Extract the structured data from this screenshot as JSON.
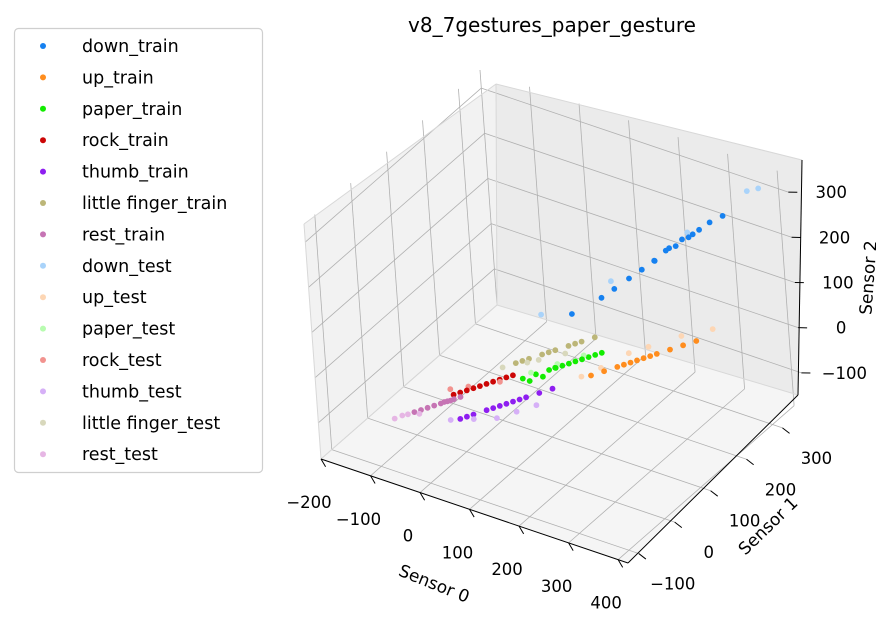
{
  "chart_data": {
    "type": "scatter",
    "projection": "3d",
    "title": "v8_7gestures_paper_gesture",
    "xlabel": "Sensor 0",
    "ylabel": "Sensor 1",
    "zlabel": "Sensor 2",
    "xlim": [
      -200,
      420
    ],
    "ylim": [
      -130,
      360
    ],
    "zlim": [
      -180,
      340
    ],
    "xticks": [
      "−200",
      "−100",
      "0",
      "100",
      "200",
      "300",
      "400"
    ],
    "yticks": [
      "−100",
      "0",
      "100",
      "200",
      "300"
    ],
    "zticks": [
      "−100",
      "0",
      "100",
      "200",
      "300"
    ],
    "grid": true,
    "legend_position": "outside-left",
    "series": [
      {
        "name": "down_train",
        "color": "#1681f0",
        "points": [
          [
            100,
            175,
            40
          ],
          [
            140,
            205,
            70
          ],
          [
            160,
            215,
            90
          ],
          [
            180,
            230,
            110
          ],
          [
            200,
            240,
            130
          ],
          [
            220,
            250,
            150
          ],
          [
            235,
            262,
            170
          ],
          [
            250,
            270,
            180
          ],
          [
            270,
            280,
            200
          ],
          [
            285,
            290,
            215
          ],
          [
            300,
            300,
            230
          ],
          [
            320,
            310,
            245
          ],
          [
            260,
            275,
            195
          ],
          [
            275,
            285,
            205
          ],
          [
            240,
            265,
            175
          ],
          [
            215,
            255,
            145
          ]
        ]
      },
      {
        "name": "up_train",
        "color": "#ff8d1e",
        "points": [
          [
            150,
            150,
            -60
          ],
          [
            170,
            160,
            -50
          ],
          [
            190,
            170,
            -40
          ],
          [
            210,
            180,
            -30
          ],
          [
            230,
            190,
            -20
          ],
          [
            250,
            200,
            -10
          ],
          [
            270,
            210,
            0
          ],
          [
            290,
            220,
            10
          ],
          [
            310,
            230,
            20
          ],
          [
            200,
            175,
            -35
          ],
          [
            220,
            185,
            -25
          ],
          [
            240,
            195,
            -15
          ]
        ]
      },
      {
        "name": "paper_train",
        "color": "#12ec00",
        "points": [
          [
            40,
            110,
            -80
          ],
          [
            60,
            120,
            -70
          ],
          [
            80,
            130,
            -60
          ],
          [
            100,
            140,
            -50
          ],
          [
            120,
            150,
            -40
          ],
          [
            140,
            160,
            -30
          ],
          [
            160,
            170,
            -20
          ],
          [
            70,
            125,
            -75
          ],
          [
            90,
            135,
            -55
          ],
          [
            110,
            145,
            -45
          ],
          [
            130,
            155,
            -35
          ],
          [
            150,
            165,
            -25
          ],
          [
            50,
            115,
            -85
          ],
          [
            85,
            140,
            -60
          ]
        ]
      },
      {
        "name": "rock_train",
        "color": "#cc0606",
        "points": [
          [
            -60,
            70,
            -120
          ],
          [
            -40,
            80,
            -110
          ],
          [
            -20,
            90,
            -100
          ],
          [
            0,
            100,
            -90
          ],
          [
            20,
            110,
            -80
          ],
          [
            -50,
            75,
            -115
          ],
          [
            -30,
            85,
            -105
          ],
          [
            -10,
            95,
            -95
          ],
          [
            10,
            105,
            -85
          ],
          [
            -70,
            65,
            -125
          ]
        ]
      },
      {
        "name": "thumb_train",
        "color": "#8e1ef0",
        "points": [
          [
            -40,
            40,
            -150
          ],
          [
            -20,
            50,
            -140
          ],
          [
            0,
            60,
            -130
          ],
          [
            20,
            70,
            -120
          ],
          [
            40,
            80,
            -110
          ],
          [
            60,
            90,
            -100
          ],
          [
            80,
            100,
            -90
          ],
          [
            100,
            110,
            -80
          ],
          [
            -30,
            45,
            -145
          ],
          [
            10,
            65,
            -125
          ],
          [
            30,
            75,
            -115
          ],
          [
            50,
            85,
            -105
          ]
        ]
      },
      {
        "name": "little finger_train",
        "color": "#bcb678",
        "points": [
          [
            20,
            120,
            -60
          ],
          [
            40,
            130,
            -50
          ],
          [
            60,
            140,
            -40
          ],
          [
            80,
            150,
            -30
          ],
          [
            100,
            160,
            -20
          ],
          [
            120,
            170,
            -10
          ],
          [
            140,
            180,
            0
          ],
          [
            30,
            125,
            -55
          ],
          [
            70,
            145,
            -35
          ],
          [
            110,
            165,
            -15
          ]
        ]
      },
      {
        "name": "rest_train",
        "color": "#c674b4",
        "points": [
          [
            -120,
            40,
            -160
          ],
          [
            -100,
            50,
            -150
          ],
          [
            -80,
            60,
            -140
          ],
          [
            -60,
            70,
            -130
          ],
          [
            -110,
            45,
            -155
          ],
          [
            -90,
            55,
            -145
          ],
          [
            -70,
            65,
            -135
          ],
          [
            -130,
            35,
            -165
          ],
          [
            -85,
            58,
            -142
          ],
          [
            -75,
            62,
            -138
          ]
        ]
      },
      {
        "name": "down_test",
        "color": "#a9d3fa",
        "points": [
          [
            40,
            170,
            20
          ],
          [
            150,
            220,
            100
          ],
          [
            260,
            290,
            200
          ],
          [
            350,
            340,
            290
          ],
          [
            370,
            345,
            300
          ]
        ]
      },
      {
        "name": "up_test",
        "color": "#fdd6b4",
        "points": [
          [
            130,
            150,
            -70
          ],
          [
            200,
            190,
            -20
          ],
          [
            280,
            230,
            20
          ],
          [
            330,
            250,
            40
          ],
          [
            160,
            165,
            -50
          ],
          [
            230,
            205,
            -5
          ]
        ]
      },
      {
        "name": "paper_test",
        "color": "#b8fcb0",
        "points": [
          [
            50,
            120,
            -70
          ],
          [
            90,
            140,
            -50
          ],
          [
            130,
            160,
            -30
          ]
        ]
      },
      {
        "name": "rock_test",
        "color": "#f2938f",
        "points": [
          [
            -50,
            80,
            -110
          ],
          [
            0,
            100,
            -95
          ],
          [
            -80,
            70,
            -120
          ]
        ]
      },
      {
        "name": "thumb_test",
        "color": "#d6b0f7",
        "points": [
          [
            -60,
            40,
            -160
          ],
          [
            20,
            60,
            -140
          ],
          [
            80,
            90,
            -110
          ],
          [
            -20,
            50,
            -150
          ],
          [
            50,
            75,
            -125
          ]
        ]
      },
      {
        "name": "little finger_test",
        "color": "#d8d8bc",
        "points": [
          [
            0,
            110,
            -70
          ],
          [
            60,
            130,
            -45
          ],
          [
            100,
            150,
            -30
          ],
          [
            40,
            125,
            -55
          ]
        ]
      },
      {
        "name": "rest_test",
        "color": "#e6b6e4",
        "points": [
          [
            -160,
            20,
            -180
          ],
          [
            -140,
            30,
            -170
          ],
          [
            -120,
            35,
            -165
          ],
          [
            -150,
            28,
            -175
          ]
        ]
      }
    ]
  }
}
